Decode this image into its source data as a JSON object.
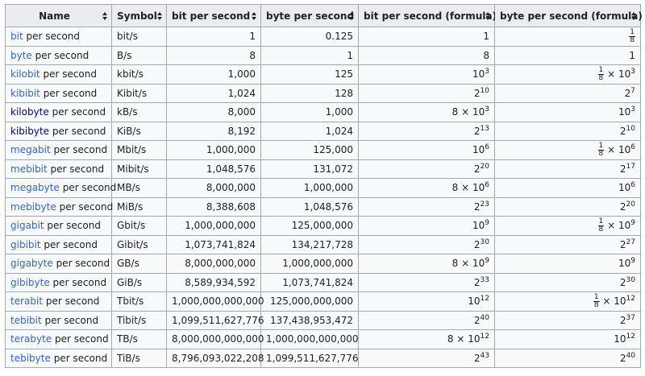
{
  "table": {
    "headers": [
      "Name",
      "Symbol",
      "bit per second",
      "byte per second",
      "bit per second (formula)",
      "byte per second (formula)"
    ],
    "rows": [
      {
        "name": {
          "link": "bit",
          "rest": "per second"
        },
        "symbol": "bit/s",
        "bps": "1",
        "Bps": "0.125",
        "f1": {
          "base": "1"
        },
        "f2": {
          "num": "1",
          "den": "8"
        }
      },
      {
        "name": {
          "link": "byte",
          "rest": "per second"
        },
        "symbol": "B/s",
        "bps": "8",
        "Bps": "1",
        "f1": {
          "base": "8"
        },
        "f2": {
          "base": "1"
        }
      },
      {
        "name": {
          "link": "kilobit",
          "rest": "per second"
        },
        "symbol": "kbit/s",
        "bps": "1,000",
        "Bps": "125",
        "f1": {
          "base": "10",
          "exp": "3"
        },
        "f2": {
          "num": "1",
          "den": "8",
          "times": "×",
          "base": "10",
          "exp": "3"
        }
      },
      {
        "name": {
          "link": "kibibit",
          "rest": "per second"
        },
        "symbol": "Kibit/s",
        "bps": "1,024",
        "Bps": "128",
        "f1": {
          "base": "2",
          "exp": "10"
        },
        "f2": {
          "base": "2",
          "exp": "7"
        }
      },
      {
        "name": {
          "link": "kilobyte",
          "rest": "per second"
        },
        "symbol": "kB/s",
        "bps": "8,000",
        "Bps": "1,000",
        "f1": {
          "coef": "8",
          "times": "×",
          "base": "10",
          "exp": "3"
        },
        "f2": {
          "base": "10",
          "exp": "3"
        }
      },
      {
        "name": {
          "link": "kibibyte",
          "rest": "per second"
        },
        "symbol": "KiB/s",
        "bps": "8,192",
        "Bps": "1,024",
        "f1": {
          "base": "2",
          "exp": "13"
        },
        "f2": {
          "base": "2",
          "exp": "10"
        }
      },
      {
        "name": {
          "link": "megabit",
          "rest": "per second"
        },
        "symbol": "Mbit/s",
        "bps": "1,000,000",
        "Bps": "125,000",
        "f1": {
          "base": "10",
          "exp": "6"
        },
        "f2": {
          "num": "1",
          "den": "8",
          "times": "×",
          "base": "10",
          "exp": "6"
        }
      },
      {
        "name": {
          "link": "mebibit",
          "rest": "per second"
        },
        "symbol": "Mibit/s",
        "bps": "1,048,576",
        "Bps": "131,072",
        "f1": {
          "base": "2",
          "exp": "20"
        },
        "f2": {
          "base": "2",
          "exp": "17"
        }
      },
      {
        "name": {
          "link": "megabyte",
          "rest": "per second"
        },
        "symbol": "MB/s",
        "bps": "8,000,000",
        "Bps": "1,000,000",
        "f1": {
          "coef": "8",
          "times": "×",
          "base": "10",
          "exp": "6"
        },
        "f2": {
          "base": "10",
          "exp": "6"
        }
      },
      {
        "name": {
          "link": "mebibyte",
          "rest": "per second"
        },
        "symbol": "MiB/s",
        "bps": "8,388,608",
        "Bps": "1,048,576",
        "f1": {
          "base": "2",
          "exp": "23"
        },
        "f2": {
          "base": "2",
          "exp": "20"
        }
      },
      {
        "name": {
          "link": "gigabit",
          "rest": "per second"
        },
        "symbol": "Gbit/s",
        "bps": "1,000,000,000",
        "Bps": "125,000,000",
        "f1": {
          "base": "10",
          "exp": "9"
        },
        "f2": {
          "num": "1",
          "den": "8",
          "times": "×",
          "base": "10",
          "exp": "9"
        }
      },
      {
        "name": {
          "link": "gibibit",
          "rest": "per second"
        },
        "symbol": "Gibit/s",
        "bps": "1,073,741,824",
        "Bps": "134,217,728",
        "f1": {
          "base": "2",
          "exp": "30"
        },
        "f2": {
          "base": "2",
          "exp": "27"
        }
      },
      {
        "name": {
          "link": "gigabyte",
          "rest": "per second"
        },
        "symbol": "GB/s",
        "bps": "8,000,000,000",
        "Bps": "1,000,000,000",
        "f1": {
          "coef": "8",
          "times": "×",
          "base": "10",
          "exp": "9"
        },
        "f2": {
          "base": "10",
          "exp": "9"
        }
      },
      {
        "name": {
          "link": "gibibyte",
          "rest": "per second"
        },
        "symbol": "GiB/s",
        "bps": "8,589,934,592",
        "Bps": "1,073,741,824",
        "f1": {
          "base": "2",
          "exp": "33"
        },
        "f2": {
          "base": "2",
          "exp": "30"
        }
      },
      {
        "name": {
          "link": "terabit",
          "rest": "per second"
        },
        "symbol": "Tbit/s",
        "bps": "1,000,000,000,000",
        "Bps": "125,000,000,000",
        "f1": {
          "base": "10",
          "exp": "12"
        },
        "f2": {
          "num": "1",
          "den": "8",
          "times": "×",
          "base": "10",
          "exp": "12"
        }
      },
      {
        "name": {
          "link": "tebibit",
          "rest": "per second"
        },
        "symbol": "Tibit/s",
        "bps": "1,099,511,627,776",
        "Bps": "137,438,953,472",
        "f1": {
          "base": "2",
          "exp": "40"
        },
        "f2": {
          "base": "2",
          "exp": "37"
        }
      },
      {
        "name": {
          "link": "terabyte",
          "rest": "per second"
        },
        "symbol": "TB/s",
        "bps": "8,000,000,000,000",
        "Bps": "1,000,000,000,000",
        "f1": {
          "coef": "8",
          "times": "×",
          "base": "10",
          "exp": "12"
        },
        "f2": {
          "base": "10",
          "exp": "12"
        }
      },
      {
        "name": {
          "link": "tebibyte",
          "rest": "per second"
        },
        "symbol": "TiB/s",
        "bps": "8,796,093,022,208",
        "Bps": "1,099,511,627,776",
        "f1": {
          "base": "2",
          "exp": "43"
        },
        "f2": {
          "base": "2",
          "exp": "40"
        }
      }
    ]
  }
}
